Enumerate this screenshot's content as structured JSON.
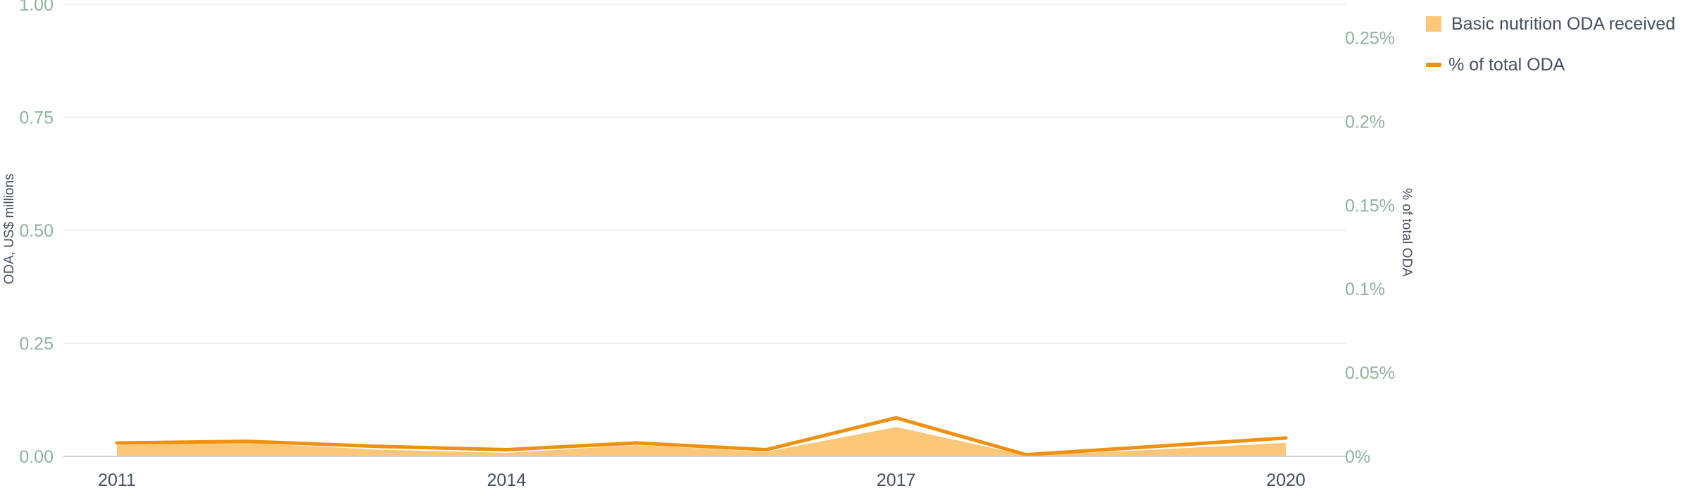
{
  "chart_data": {
    "type": "area",
    "x": [
      2011,
      2012,
      2013,
      2014,
      2015,
      2016,
      2017,
      2018,
      2019,
      2020
    ],
    "x_ticks": [
      "2011",
      "2014",
      "2017",
      "2020"
    ],
    "series": [
      {
        "name": "Basic nutrition ODA received",
        "type": "area",
        "axis": "left",
        "color": "#fdc77a",
        "values": [
          0.025,
          0.03,
          0.015,
          0.008,
          0.025,
          0.01,
          0.065,
          0.002,
          0.015,
          0.03
        ]
      },
      {
        "name": "% of total ODA",
        "type": "line",
        "axis": "right",
        "color": "#f0900f",
        "values": [
          0.008,
          0.009,
          0.006,
          0.004,
          0.008,
          0.004,
          0.023,
          0.001,
          0.006,
          0.011
        ]
      }
    ],
    "y_left": {
      "label": "ODA, US$ millions",
      "range": [
        0,
        1
      ],
      "ticks": [
        "0.00",
        "0.25",
        "0.50",
        "0.75",
        "1.00"
      ]
    },
    "y_right": {
      "label": "% of total ODA",
      "range": [
        0,
        0.27
      ],
      "ticks": [
        "0%",
        "0.05%",
        "0.1%",
        "0.15%",
        "0.2%",
        "0.25%"
      ]
    },
    "grid": true,
    "legend_position": "top-right"
  }
}
